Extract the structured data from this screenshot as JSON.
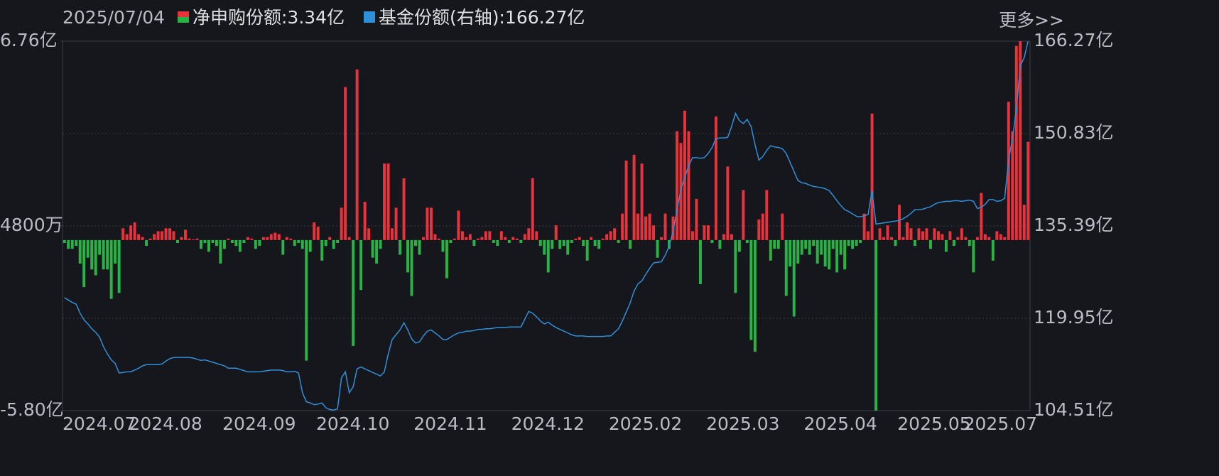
{
  "date": "2025/07/04",
  "more_link": "更多>>",
  "chart_data": {
    "type": "bar",
    "categories": [
      "2024.07",
      null,
      null,
      null,
      null,
      null,
      null,
      null,
      null,
      null,
      null,
      null,
      null,
      null,
      null,
      null,
      null,
      "2024.08",
      null,
      null,
      null,
      null,
      null,
      null,
      null,
      null,
      null,
      null,
      null,
      null,
      null,
      null,
      null,
      null,
      null,
      null,
      null,
      null,
      null,
      null,
      null,
      "2024.09",
      null,
      null,
      null,
      null,
      null,
      null,
      null,
      null,
      null,
      null,
      null,
      null,
      null,
      null,
      null,
      null,
      null,
      null,
      null,
      null,
      null,
      null,
      null,
      "2024.10",
      null,
      null,
      null,
      null,
      null,
      null,
      null,
      null,
      null,
      null,
      null,
      null,
      null,
      null,
      null,
      null,
      null,
      null,
      null,
      null,
      null,
      null,
      null,
      null,
      "2024.11",
      null,
      null,
      null,
      null,
      null,
      null,
      null,
      null,
      null,
      null,
      null,
      null,
      null,
      null,
      null,
      null,
      null,
      null,
      null,
      null,
      null,
      null,
      null,
      null,
      "2024.12",
      null,
      null,
      null,
      null,
      null,
      null,
      null,
      null,
      null,
      null,
      null,
      null,
      null,
      null,
      null,
      null,
      null,
      null,
      null,
      null,
      null,
      null,
      null,
      null,
      "2025.02",
      null,
      null,
      null,
      null,
      null,
      null,
      null,
      null,
      null,
      null,
      null,
      null,
      null,
      null,
      null,
      null,
      null,
      null,
      null,
      null,
      null,
      null,
      null,
      null,
      "2025.03",
      null,
      null,
      null,
      null,
      null,
      null,
      null,
      null,
      null,
      null,
      null,
      null,
      null,
      null,
      null,
      null,
      null,
      null,
      null,
      null,
      null,
      null,
      null,
      null,
      "2025.04",
      null,
      null,
      null,
      null,
      null,
      null,
      null,
      null,
      null,
      null,
      null,
      null,
      null,
      null,
      null,
      null,
      null,
      null,
      null,
      null,
      null,
      null,
      null,
      "2025.05",
      null,
      null,
      null,
      null,
      null,
      null,
      null,
      null,
      null,
      null,
      null,
      null,
      null,
      null,
      null,
      null,
      "2025.07",
      null,
      null,
      null,
      null,
      null,
      null,
      null,
      null,
      null,
      null,
      null,
      null,
      null,
      null,
      null,
      null
    ],
    "series": [
      {
        "name": "净申购份额:3.34亿",
        "type": "bar",
        "color": "#e8333d",
        "negative_color": "#27b445",
        "values": [
          -0.1,
          -0.3,
          -0.3,
          -0.2,
          -0.8,
          -1.6,
          -0.6,
          -1.0,
          -1.2,
          -0.5,
          -1.0,
          -1.0,
          -2.0,
          -0.8,
          -1.8,
          0.4,
          0.2,
          0.5,
          0.6,
          0.2,
          0.1,
          -0.2,
          0.05,
          0.2,
          0.3,
          0.3,
          0.4,
          0.4,
          0.3,
          -0.1,
          0.1,
          0.35,
          0.05,
          0.02,
          0.05,
          -0.3,
          -0.1,
          -0.4,
          -0.1,
          -0.2,
          -0.8,
          -0.3,
          0.05,
          -0.1,
          -0.2,
          -0.4,
          -0.1,
          0.1,
          0.05,
          -0.3,
          -0.2,
          0.1,
          0.1,
          0.2,
          0.25,
          0.2,
          -0.5,
          0.1,
          0.05,
          -0.2,
          -0.1,
          -0.3,
          -4.1,
          -0.4,
          0.6,
          0.45,
          -0.7,
          -0.2,
          0.1,
          -0.3,
          -0.1,
          1.1,
          5.2,
          0.1,
          -3.6,
          5.8,
          -1.7,
          1.3,
          0.4,
          -0.6,
          -0.8,
          -0.3,
          2.6,
          2.6,
          0.4,
          1.1,
          -0.5,
          2.1,
          -1.1,
          -1.9,
          -0.2,
          -0.5,
          0.1,
          1.1,
          1.1,
          0.2,
          0.05,
          -0.4,
          -1.3,
          -0.1,
          0.05,
          1.0,
          0.3,
          0.1,
          0.2,
          -0.2,
          0.05,
          0.1,
          0.3,
          0.3,
          -0.1,
          -0.2,
          0.3,
          0.1,
          -0.1,
          0.1,
          0.05,
          -0.1,
          0.2,
          0.4,
          2.1,
          0.3,
          -0.2,
          -0.5,
          -1.1,
          -0.3,
          0.5,
          -0.3,
          -0.2,
          -0.5,
          -0.1,
          0.05,
          0.1,
          -0.2,
          -0.7,
          0.1,
          -0.2,
          -0.3,
          0.05,
          0.2,
          0.3,
          0.4,
          -0.1,
          0.9,
          2.7,
          -0.3,
          2.9,
          0.9,
          2.6,
          0.8,
          0.9,
          0.5,
          -0.6,
          0.1,
          0.9,
          -0.3,
          0.8,
          3.7,
          3.3,
          4.4,
          3.7,
          0.3,
          1.4,
          -1.5,
          0.5,
          0.5,
          -0.1,
          4.2,
          -0.3,
          0.2,
          2.5,
          0.2,
          -1.8,
          -0.4,
          1.7,
          -0.1,
          -3.4,
          -3.8,
          0.7,
          0.9,
          1.7,
          -0.7,
          -0.3,
          -0.3,
          0.9,
          -1.9,
          -0.9,
          -2.6,
          -0.8,
          -0.5,
          -0.3,
          -0.5,
          -0.2,
          -0.8,
          -0.5,
          -0.9,
          -1.0,
          -0.3,
          -1.1,
          -0.5,
          -1.0,
          -0.2,
          -0.3,
          -0.2,
          -0.1,
          0.9,
          0.3,
          4.3,
          -5.8,
          0.4,
          0.1,
          0.5,
          0.1,
          -0.2,
          1.2,
          0.1,
          0.6,
          0.4,
          -0.2,
          0.4,
          0.3,
          0.4,
          -0.3,
          0.4,
          0.3,
          0.2,
          -0.4,
          0.3,
          -0.2,
          0.1,
          0.4,
          0.1,
          -0.2,
          -1.1,
          0.1,
          1.6,
          0.2,
          0.1,
          -0.7,
          0.3,
          0.2,
          0.1,
          4.7,
          3.7,
          6.6,
          6.76,
          1.2,
          3.34
        ]
      },
      {
        "name": "基金份额(右轴):166.27亿",
        "type": "line",
        "axis": "y2",
        "color": "#2f8fd8",
        "values": [
          123.4,
          123.0,
          122.6,
          122.3,
          120.8,
          119.7,
          119.0,
          118.2,
          117.6,
          116.8,
          115.2,
          114.0,
          113.0,
          112.4,
          110.8,
          110.9,
          111.0,
          111.0,
          111.3,
          111.6,
          112.0,
          112.2,
          112.2,
          112.2,
          112.2,
          112.3,
          112.8,
          113.2,
          113.4,
          113.4,
          113.4,
          113.4,
          113.4,
          113.3,
          113.1,
          112.9,
          113.0,
          112.8,
          112.6,
          112.4,
          112.2,
          112.0,
          111.6,
          111.6,
          111.6,
          111.4,
          111.2,
          111.0,
          111.0,
          111.0,
          111.0,
          111.1,
          111.2,
          111.3,
          111.3,
          111.3,
          111.2,
          111.0,
          111.0,
          111.1,
          110.8,
          107.5,
          106.0,
          105.8,
          105.5,
          105.6,
          105.8,
          105.0,
          104.7,
          104.6,
          104.8,
          110.0,
          111.0,
          107.5,
          108.5,
          111.5,
          111.8,
          111.5,
          111.2,
          110.9,
          110.6,
          110.3,
          111.0,
          114.0,
          116.4,
          117.2,
          118.0,
          119.2,
          118.0,
          116.5,
          115.8,
          116.0,
          117.0,
          117.8,
          118.0,
          117.5,
          117.0,
          116.4,
          116.4,
          116.8,
          117.2,
          117.5,
          117.6,
          117.8,
          117.8,
          117.9,
          118.1,
          118.1,
          118.2,
          118.2,
          118.3,
          118.4,
          118.4,
          118.4,
          118.5,
          118.5,
          118.5,
          118.5,
          119.8,
          121.1,
          120.8,
          120.2,
          119.5,
          119.0,
          119.3,
          118.8,
          118.4,
          118.1,
          117.8,
          117.5,
          117.2,
          117.0,
          117.0,
          117.0,
          116.9,
          116.9,
          116.9,
          116.9,
          116.9,
          117.0,
          117.0,
          117.6,
          118.2,
          119.5,
          121.0,
          122.5,
          124.5,
          125.7,
          126.2,
          127.3,
          128.3,
          129.2,
          129.3,
          129.4,
          130.5,
          132.0,
          134.5,
          138.0,
          141.5,
          143.5,
          145.5,
          146.8,
          146.8,
          146.7,
          146.8,
          147.5,
          148.5,
          150.0,
          150.1,
          150.1,
          150.2,
          152.0,
          154.2,
          153.0,
          152.5,
          153.2,
          152.0,
          149.0,
          146.4,
          147.0,
          148.0,
          148.8,
          148.6,
          148.5,
          148.3,
          147.5,
          146.0,
          144.5,
          143.0,
          142.6,
          142.5,
          142.2,
          142.0,
          141.9,
          141.8,
          141.6,
          141.3,
          140.5,
          139.6,
          138.8,
          138.1,
          137.8,
          137.4,
          137.0,
          136.9,
          137.1,
          137.3,
          141.3,
          135.7,
          135.8,
          135.9,
          136.0,
          136.1,
          136.2,
          136.3,
          136.6,
          137.0,
          137.5,
          138.1,
          138.1,
          138.2,
          138.4,
          138.6,
          139.0,
          139.3,
          139.4,
          139.5,
          139.5,
          139.6,
          139.6,
          139.5,
          139.6,
          139.7,
          139.5,
          138.3,
          138.5,
          139.0,
          139.8,
          139.8,
          139.5,
          139.6,
          140.0,
          146.4,
          150.0,
          155.0,
          162.2,
          163.5,
          166.27
        ]
      }
    ],
    "ylim": [
      -5.8,
      6.76
    ],
    "yticks": [
      {
        "value": 6.76,
        "label": "6.76亿"
      },
      {
        "value": 0.48,
        "label": "4800万"
      },
      {
        "value": -5.8,
        "label": "-5.80亿"
      }
    ],
    "y2lim": [
      104.51,
      166.27
    ],
    "y2ticks": [
      {
        "value": 166.27,
        "label": "166.27亿"
      },
      {
        "value": 150.83,
        "label": "150.83亿"
      },
      {
        "value": 135.39,
        "label": "135.39亿"
      },
      {
        "value": 119.95,
        "label": "119.95亿"
      },
      {
        "value": 104.51,
        "label": "104.51亿"
      }
    ],
    "grid": true
  }
}
